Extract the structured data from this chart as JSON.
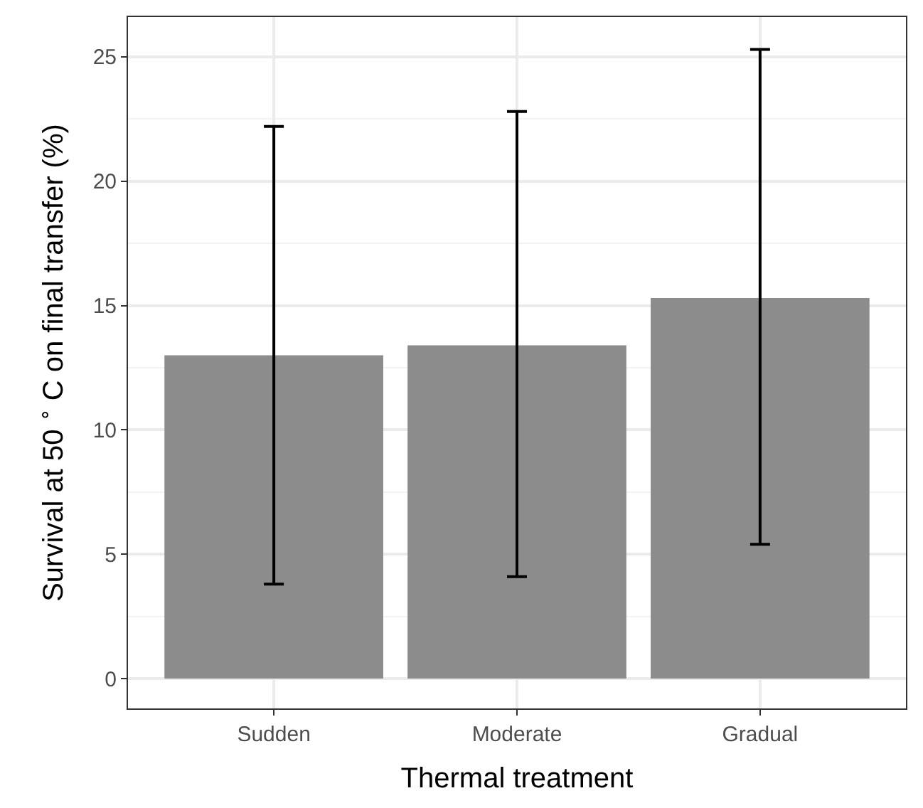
{
  "chart_data": {
    "type": "bar",
    "xlabel": "Thermal treatment",
    "ylabel": "Survival at 50 $^{∘}$ C on final transfer (%)",
    "categories": [
      "Sudden",
      "Moderate",
      "Gradual"
    ],
    "values": [
      13.0,
      13.4,
      15.3
    ],
    "color": "#8c8c8c",
    "errors": [
      [
        3.8,
        22.2
      ],
      [
        4.1,
        22.8
      ],
      [
        5.4,
        25.3
      ]
    ],
    "ylim": [
      -1.2,
      26.6
    ],
    "yticks": [
      0,
      5,
      10,
      15,
      20,
      25
    ],
    "grid": true
  }
}
